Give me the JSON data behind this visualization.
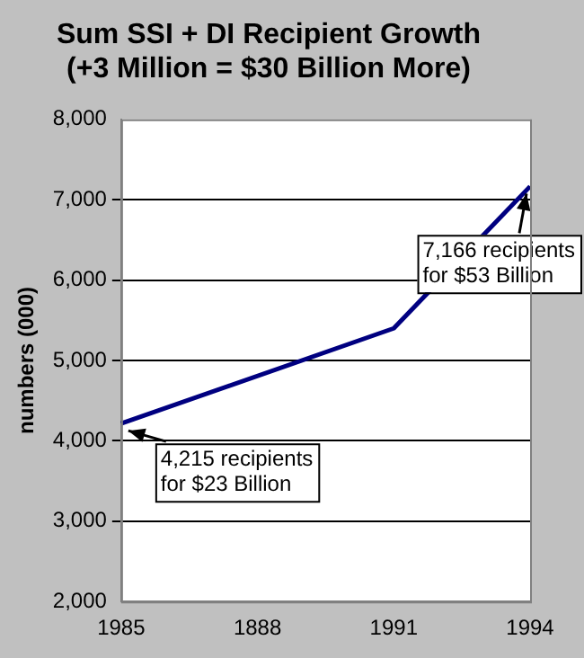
{
  "chart_data": {
    "type": "line",
    "title": "Sum SSI + DI Recipient Growth\n(+3 Million = $30 Billion More)",
    "ylabel": "numbers (000)",
    "categories": [
      "1985",
      "1888",
      "1991",
      "1994"
    ],
    "series": [
      {
        "color": "#000080",
        "values": [
          4215,
          null,
          5400,
          7166
        ]
      }
    ],
    "ylim": [
      2000,
      8000
    ],
    "yticks": [
      {
        "value": 2000,
        "label": "2,000"
      },
      {
        "value": 3000,
        "label": "3,000"
      },
      {
        "value": 4000,
        "label": "4,000"
      },
      {
        "value": 5000,
        "label": "5,000"
      },
      {
        "value": 6000,
        "label": "6,000"
      },
      {
        "value": 7000,
        "label": "7,000"
      },
      {
        "value": 8000,
        "label": "8,000"
      }
    ],
    "grid": "y",
    "marker": "none",
    "line_style": "solid",
    "annotations": [
      {
        "text": "4,215 recipients\nfor $23 Billion",
        "x": "1985",
        "y": 4215
      },
      {
        "text": "7,166 recipients\nfor $53 Billion",
        "x": "1994",
        "y": 7166
      }
    ]
  }
}
